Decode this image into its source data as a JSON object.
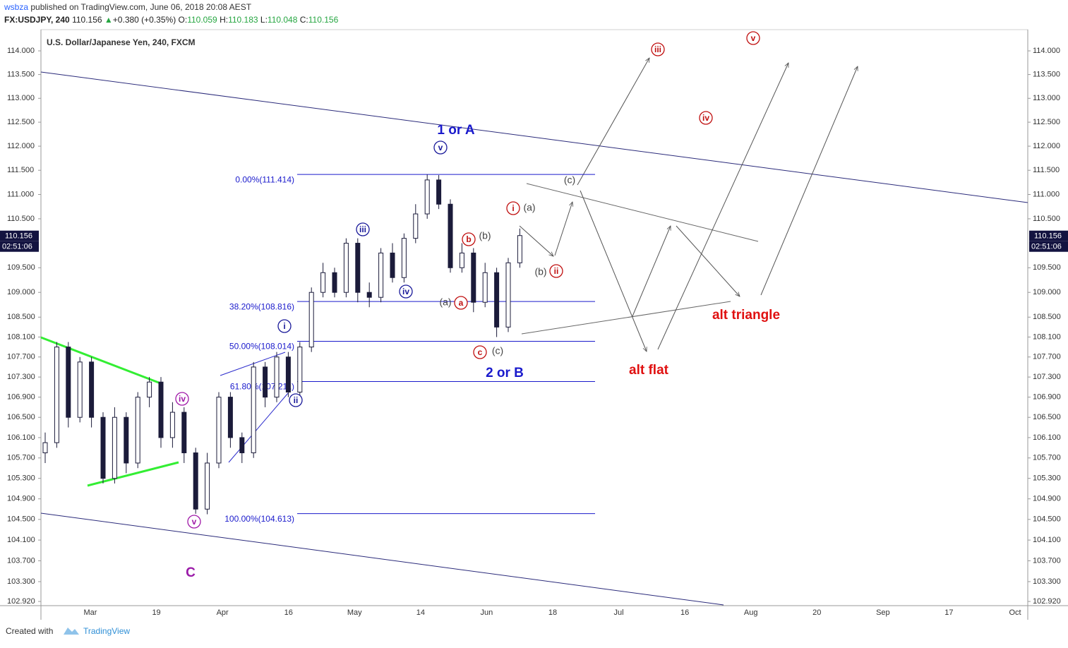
{
  "header": {
    "author": "wsbza",
    "published": "published on TradingView.com, June 06, 2018 20:08 AEST",
    "symbol": "FX:USDJPY, 240",
    "price": "110.156",
    "change": "+0.380 (+0.35%)",
    "open_label": "O:",
    "open": "110.059",
    "high_label": "H:",
    "high": "110.183",
    "low_label": "L:",
    "low": "110.048",
    "close_label": "C:",
    "close": "110.156"
  },
  "footer": {
    "created": "Created with",
    "brand": "TradingView"
  },
  "chart_data": {
    "type": "candlestick",
    "title": "U.S. Dollar/Japanese Yen, 240, FXCM",
    "log_scale": true,
    "color": "#1b1b3a",
    "ylim": [
      102.84,
      114.45
    ],
    "yticks": [
      {
        "value": 114,
        "label": "114.000"
      },
      {
        "value": 113.5,
        "label": "113.500"
      },
      {
        "value": 113,
        "label": "113.000"
      },
      {
        "value": 112.5,
        "label": "112.500"
      },
      {
        "value": 112,
        "label": "112.000"
      },
      {
        "value": 111.5,
        "label": "111.500"
      },
      {
        "value": 111,
        "label": "111.000"
      },
      {
        "value": 110.5,
        "label": "110.500"
      },
      {
        "value": 109.5,
        "label": "109.500"
      },
      {
        "value": 109,
        "label": "109.000"
      },
      {
        "value": 108.5,
        "label": "108.500"
      },
      {
        "value": 108.1,
        "label": "108.100"
      },
      {
        "value": 107.7,
        "label": "107.700"
      },
      {
        "value": 107.3,
        "label": "107.300"
      },
      {
        "value": 106.9,
        "label": "106.900"
      },
      {
        "value": 106.5,
        "label": "106.500"
      },
      {
        "value": 106.1,
        "label": "106.100"
      },
      {
        "value": 105.7,
        "label": "105.700"
      },
      {
        "value": 105.3,
        "label": "105.300"
      },
      {
        "value": 104.9,
        "label": "104.900"
      },
      {
        "value": 104.5,
        "label": "104.500"
      },
      {
        "value": 104.1,
        "label": "104.100"
      },
      {
        "value": 103.7,
        "label": "103.700"
      },
      {
        "value": 103.3,
        "label": "103.300"
      },
      {
        "value": 102.92,
        "label": "102.920"
      }
    ],
    "categories": [
      "Mar",
      "19",
      "Apr",
      "16",
      "May",
      "14",
      "Jun",
      "18",
      "Jul",
      "16",
      "Aug",
      "20",
      "Sep",
      "17",
      "Oct"
    ],
    "ohlc": [
      [
        105.8,
        106.2,
        105.6,
        106.0
      ],
      [
        106.0,
        108.0,
        105.9,
        107.9
      ],
      [
        107.9,
        108.0,
        106.3,
        106.5
      ],
      [
        106.5,
        107.7,
        106.4,
        107.6
      ],
      [
        107.6,
        107.7,
        106.3,
        106.5
      ],
      [
        106.5,
        106.6,
        105.2,
        105.3
      ],
      [
        105.3,
        106.7,
        105.2,
        106.5
      ],
      [
        106.5,
        106.6,
        105.4,
        105.6
      ],
      [
        105.6,
        107.0,
        105.5,
        106.9
      ],
      [
        106.9,
        107.3,
        106.7,
        107.2
      ],
      [
        107.2,
        107.3,
        105.9,
        106.1
      ],
      [
        106.1,
        106.8,
        105.9,
        106.6
      ],
      [
        106.6,
        106.7,
        105.6,
        105.8
      ],
      [
        105.8,
        105.9,
        104.61,
        104.7
      ],
      [
        104.7,
        105.8,
        104.6,
        105.6
      ],
      [
        105.6,
        107.0,
        105.5,
        106.9
      ],
      [
        106.9,
        107.0,
        105.9,
        106.1
      ],
      [
        106.1,
        106.2,
        105.6,
        105.8
      ],
      [
        105.8,
        107.6,
        105.7,
        107.5
      ],
      [
        107.5,
        107.6,
        106.7,
        106.9
      ],
      [
        106.9,
        107.8,
        106.8,
        107.7
      ],
      [
        107.7,
        107.8,
        106.9,
        107.0
      ],
      [
        107.0,
        108.0,
        106.9,
        107.9
      ],
      [
        107.9,
        109.1,
        107.8,
        109.0
      ],
      [
        109.0,
        109.6,
        108.9,
        109.4
      ],
      [
        109.4,
        109.5,
        108.9,
        109.0
      ],
      [
        109.0,
        110.1,
        108.9,
        110.0
      ],
      [
        110.0,
        110.1,
        108.8,
        109.0
      ],
      [
        109.0,
        109.2,
        108.7,
        108.9
      ],
      [
        108.9,
        109.9,
        108.8,
        109.8
      ],
      [
        109.8,
        110.0,
        109.2,
        109.3
      ],
      [
        109.3,
        110.2,
        109.2,
        110.1
      ],
      [
        110.1,
        110.8,
        110.0,
        110.6
      ],
      [
        110.6,
        111.414,
        110.5,
        111.3
      ],
      [
        111.3,
        111.4,
        110.7,
        110.8
      ],
      [
        110.8,
        110.9,
        109.4,
        109.5
      ],
      [
        109.5,
        110.0,
        109.4,
        109.8
      ],
      [
        109.8,
        109.9,
        108.6,
        108.8
      ],
      [
        108.8,
        109.6,
        108.7,
        109.4
      ],
      [
        109.4,
        109.5,
        108.1,
        108.3
      ],
      [
        108.3,
        109.7,
        108.2,
        109.6
      ],
      [
        109.6,
        110.3,
        109.5,
        110.156
      ]
    ],
    "last_price": {
      "value": 110.156,
      "label": "110.156"
    },
    "countdown": "02:51:06",
    "fib_levels": [
      {
        "value": 111.414,
        "label": "0.00%(111.414)"
      },
      {
        "value": 108.816,
        "label": "38.20%(108.816)"
      },
      {
        "value": 108.014,
        "label": "50.00%(108.014)"
      },
      {
        "value": 107.211,
        "label": "61.80%(107.211)"
      },
      {
        "value": 104.613,
        "label": "100.00%(104.613)"
      }
    ],
    "annotations": [
      {
        "text": "1 or A",
        "color": "#1a1acc"
      },
      {
        "text": "2 or B",
        "color": "#1a1acc"
      },
      {
        "text": "alt flat",
        "color": "#e01010"
      },
      {
        "text": "alt triangle",
        "color": "#e01010"
      },
      {
        "text": "C",
        "color": "#9a1aa8"
      },
      {
        "text": "v",
        "color": "#1a1a9a",
        "circled": true
      },
      {
        "text": "iii",
        "color": "#1a1a9a",
        "circled": true
      },
      {
        "text": "iv",
        "color": "#1a1a9a",
        "circled": true
      },
      {
        "text": "i",
        "color": "#1a1a9a",
        "circled": true
      },
      {
        "text": "ii",
        "color": "#1a1a9a",
        "circled": true
      },
      {
        "text": "iv",
        "color": "#a01aa8",
        "circled": true
      },
      {
        "text": "v",
        "color": "#a01aa8",
        "circled": true
      },
      {
        "text": "i",
        "color": "#c01010",
        "circled": true
      },
      {
        "text": "ii",
        "color": "#c01010",
        "circled": true
      },
      {
        "text": "iii",
        "color": "#c01010",
        "circled": true
      },
      {
        "text": "iv",
        "color": "#c01010",
        "circled": true
      },
      {
        "text": "v",
        "color": "#c01010",
        "circled": true
      },
      {
        "text": "b",
        "color": "#c01010",
        "circled": true
      },
      {
        "text": "a",
        "color": "#c01010",
        "circled": true
      },
      {
        "text": "c",
        "color": "#c01010",
        "circled": true
      },
      {
        "text": "(a)",
        "color": "#444444"
      },
      {
        "text": "(b)",
        "color": "#444444"
      },
      {
        "text": "(b)",
        "color": "#444444"
      },
      {
        "text": "(a)",
        "color": "#444444"
      },
      {
        "text": "(c)",
        "color": "#444444"
      },
      {
        "text": "(c)",
        "color": "#444444"
      }
    ]
  }
}
